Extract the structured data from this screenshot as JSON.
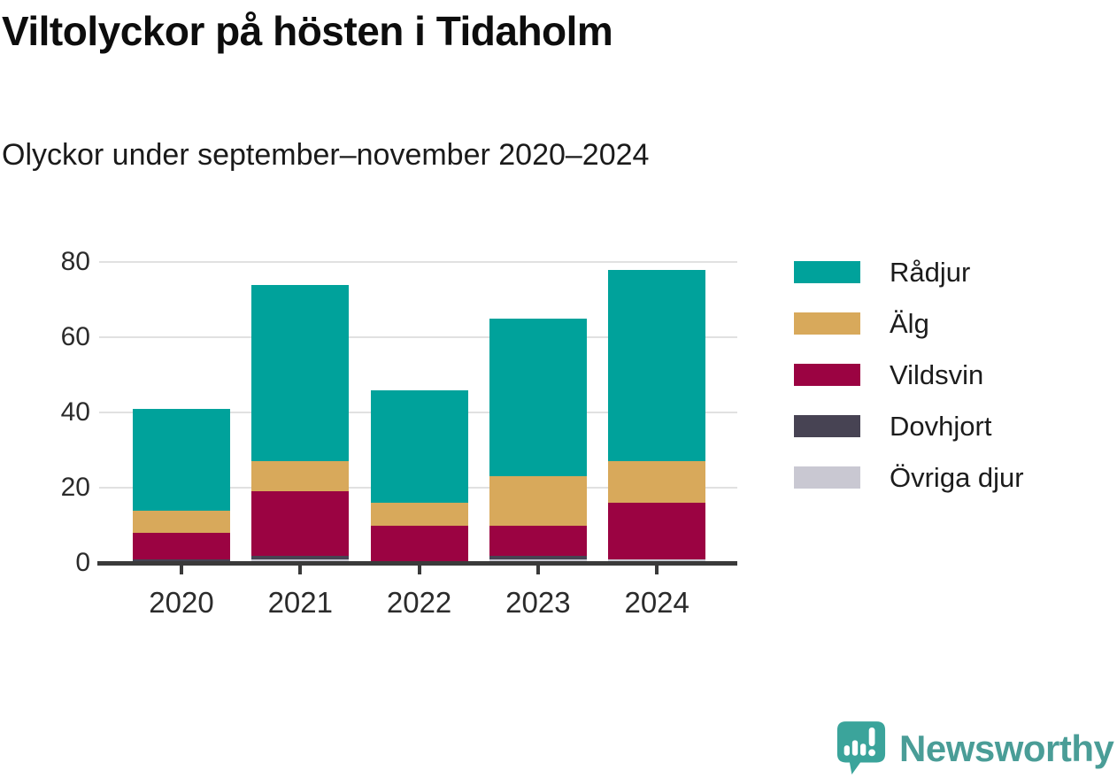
{
  "chart_data": {
    "type": "bar",
    "stacked": true,
    "title": "Viltolyckor på hösten i Tidaholm",
    "subtitle": "Olyckor under september–november 2020–2024",
    "categories": [
      "2020",
      "2021",
      "2022",
      "2023",
      "2024"
    ],
    "series": [
      {
        "name": "Rådjur",
        "color": "#00A29B",
        "values": [
          27,
          47,
          30,
          42,
          51
        ]
      },
      {
        "name": "Älg",
        "color": "#D8A95B",
        "values": [
          6,
          8,
          6,
          13,
          11
        ]
      },
      {
        "name": "Vildsvin",
        "color": "#9B0342",
        "values": [
          7,
          17,
          10,
          8,
          15
        ]
      },
      {
        "name": "Dovhjort",
        "color": "#474353",
        "values": [
          1,
          1,
          0,
          1,
          0
        ]
      },
      {
        "name": "Övriga djur",
        "color": "#C9C8D2",
        "values": [
          0,
          1,
          0,
          1,
          1
        ]
      }
    ],
    "totals": [
      41,
      74,
      46,
      65,
      78
    ],
    "ylim": [
      0,
      80
    ],
    "yticks": [
      0,
      20,
      40,
      60,
      80
    ],
    "xlabel": "",
    "ylabel": "",
    "grid": "horizontal-only",
    "legend_position": "right",
    "stack_order_bottom_to_top": [
      "Övriga djur",
      "Dovhjort",
      "Vildsvin",
      "Älg",
      "Rådjur"
    ]
  },
  "colors": {
    "axis": "#3A3A3A",
    "gridline": "#E1E1E1",
    "title_text": "#0D0D0D",
    "tick_text": "#2B2B2B",
    "brand_teal": "#3BA49B"
  },
  "branding": {
    "wordmark": "Newsworthy",
    "logo_icon": "speech-bubble-bar-chart-exclamation"
  }
}
